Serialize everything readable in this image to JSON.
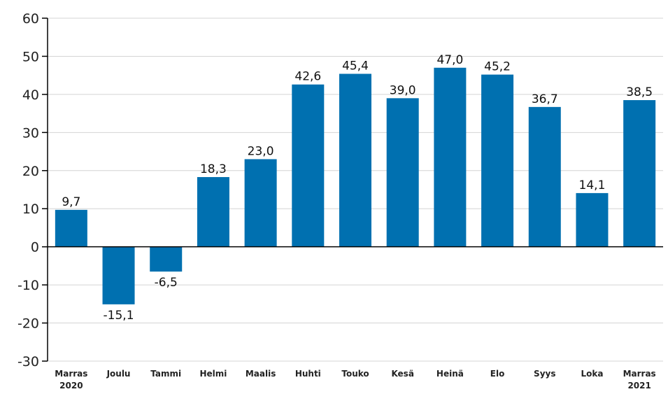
{
  "chart_data": {
    "type": "bar",
    "categories": [
      [
        "Marras",
        "2020"
      ],
      [
        "Joulu"
      ],
      [
        "Tammi"
      ],
      [
        "Helmi"
      ],
      [
        "Maalis"
      ],
      [
        "Huhti"
      ],
      [
        "Touko"
      ],
      [
        "Kesä"
      ],
      [
        "Heinä"
      ],
      [
        "Elo"
      ],
      [
        "Syys"
      ],
      [
        "Loka"
      ],
      [
        "Marras",
        "2021"
      ]
    ],
    "values": [
      9.7,
      -15.1,
      -6.5,
      18.3,
      23.0,
      42.6,
      45.4,
      39.0,
      47.0,
      45.2,
      36.7,
      14.1,
      38.5
    ],
    "value_labels": [
      "9,7",
      "-15,1",
      "-6,5",
      "18,3",
      "23,0",
      "42,6",
      "45,4",
      "39,0",
      "47,0",
      "45,2",
      "36,7",
      "14,1",
      "38,5"
    ],
    "yticks": [
      60,
      50,
      40,
      30,
      20,
      10,
      0,
      -10,
      -20,
      -30
    ],
    "ytick_labels": [
      "60",
      "50",
      "40",
      "30",
      "20",
      "10",
      "0",
      "-10",
      "-20",
      "-30"
    ],
    "ylim": [
      -30,
      60
    ],
    "grid": true,
    "bar_color": "#0070b0",
    "title": "",
    "xlabel": "",
    "ylabel": ""
  }
}
